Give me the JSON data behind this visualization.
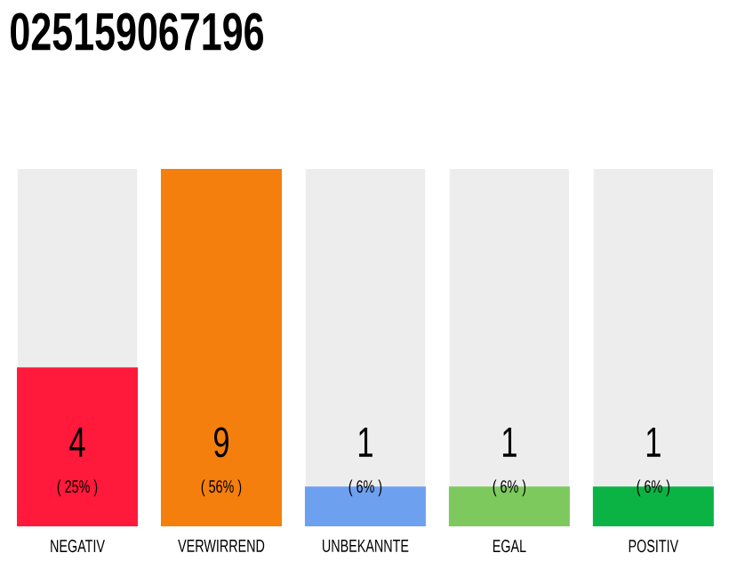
{
  "chart_data": {
    "type": "bar",
    "title": "025159067196",
    "categories": [
      "NEGATIV",
      "VERWIRREND",
      "UNBEKANNTE",
      "EGAL",
      "POSITIV"
    ],
    "values": [
      4,
      9,
      1,
      1,
      1
    ],
    "colors": [
      "#ff1a3c",
      "#f57f0c",
      "#6ea0f0",
      "#7dc95e",
      "#0bb345"
    ],
    "data_labels": true,
    "annotations": [
      "( 25% )",
      "( 56% )",
      "( 6% )",
      "( 6% )",
      "( 6% )"
    ]
  }
}
